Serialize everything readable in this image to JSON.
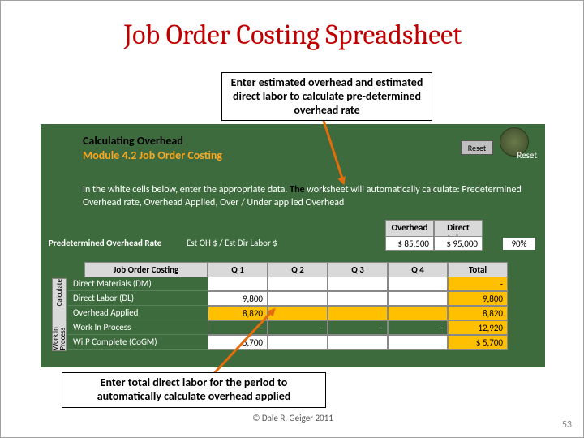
{
  "title": "Job Order Costing Spreadsheet",
  "callout_top": "Enter estimated overhead and estimated direct labor to calculate pre-determined overhead rate",
  "callout_bottom": "Enter total direct labor for the period to automatically calculate overhead applied",
  "sheet": {
    "calc_oh": "Calculating Overhead",
    "module": "Module 4.2 Job Order Costing",
    "reset_btn": "Reset",
    "reset_text": "Reset",
    "instructions_a": "In the white cells below, enter the appropriate data. ",
    "instructions_b": "The",
    "instructions_c": " worksheet will automatically calculate: Predetermined Overhead rate, Overhead Applied, Over / Under applied Overhead",
    "oh_hdr": "Overhead",
    "dl_hdr": "Direct Labor",
    "rate_label": "Predetermined Overhead Rate",
    "rate_calc": "Est OH $ / Est Dir Labor $",
    "est_oh": "$   85,500",
    "est_dl": "$   95,000",
    "pct": "90%",
    "joc": "Job Order Costing",
    "q1": "Q 1",
    "q2": "Q 2",
    "q3": "Q 3",
    "q4": "Q 4",
    "tot": "Total",
    "side1": "Calculate",
    "side2": "Work in Process",
    "rows": {
      "dm": {
        "label": "Direct Materials (DM)",
        "q1": "",
        "q2": "",
        "q3": "",
        "q4": "",
        "tot": "-"
      },
      "dl": {
        "label": "Direct Labor (DL)",
        "q1": "9,800",
        "q2": "",
        "q3": "",
        "q4": "",
        "tot": "9,800"
      },
      "oa": {
        "label": "Overhead Applied",
        "q1": "8,820",
        "q2": "",
        "q3": "",
        "q4": "",
        "tot": "8,820"
      },
      "wip": {
        "label": "Work In Process",
        "q1": "-",
        "q2": "-",
        "q3": "-",
        "q4": "-",
        "tot": "12,920"
      },
      "cogm": {
        "label": "Wi.P Complete (CoGM)",
        "q1": "5,700",
        "q2": "",
        "q3": "",
        "q4": "",
        "tot": "$     5,700"
      }
    }
  },
  "copyright": "© Dale R. Geiger 2011",
  "pagenum": "53",
  "colors": {
    "title": "#c00000",
    "sheet_bg": "#3d6b3d",
    "accent": "#ffc000",
    "arrow": "#e46c0a"
  }
}
